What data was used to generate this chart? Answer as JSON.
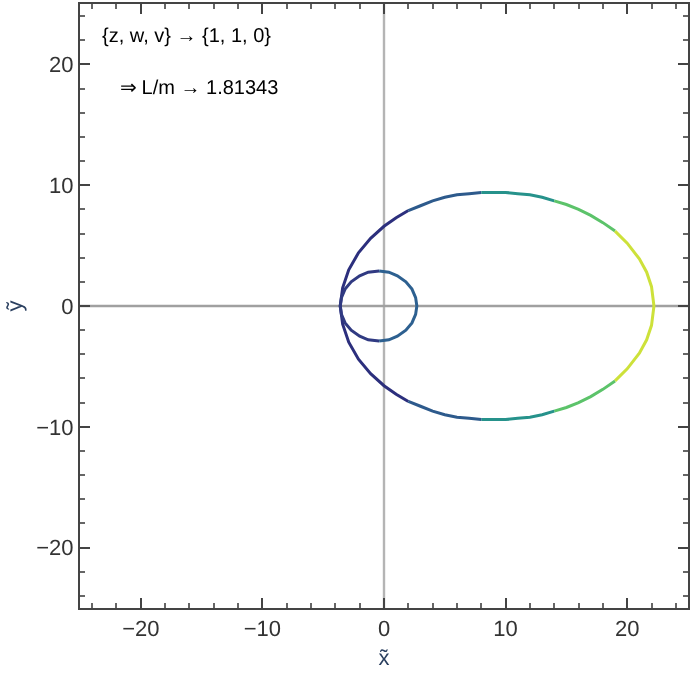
{
  "chart_data": {
    "type": "line",
    "xlabel": "x̃",
    "ylabel": "ỹ",
    "annotations": [
      "{z, w, v} → {1, 1, 0}",
      "⇒ L/m → 1.81343"
    ],
    "xlim": [
      -25,
      25
    ],
    "ylim": [
      -25,
      25
    ],
    "xticks": [
      {
        "value": -20,
        "label": "−20"
      },
      {
        "value": -10,
        "label": "−10"
      },
      0,
      10,
      20
    ],
    "yticks": [
      {
        "value": -20,
        "label": "−20"
      },
      {
        "value": -10,
        "label": "−10"
      },
      0,
      10,
      20
    ],
    "grid": false,
    "marker": "none",
    "line_style": "solid",
    "ref_lines": [
      {
        "axis": "x",
        "value": 0,
        "color": "#b4b4b4"
      },
      {
        "axis": "y",
        "value": 0,
        "color": "#a0a0a0"
      }
    ],
    "series": [
      {
        "color": "#2c2f7d",
        "x": [
          2,
          1,
          0,
          -1.1,
          -2.1,
          -2.9,
          -3.4,
          -3.6,
          -3.4,
          -2.9,
          -2.1,
          -1.1,
          0,
          1,
          2
        ],
        "values": [
          -7.9,
          -7.3,
          -6.6,
          -5.6,
          -4.4,
          -3,
          -1.5,
          0,
          1.5,
          3,
          4.4,
          5.6,
          6.6,
          7.3,
          7.9
        ]
      },
      {
        "color": "#2d5a8c",
        "x": [
          2,
          3,
          4,
          5,
          6,
          7,
          8
        ],
        "values": [
          7.9,
          8.3,
          8.7,
          9,
          9.2,
          9.3,
          9.4
        ]
      },
      {
        "color": "#26928b",
        "x": [
          8,
          9,
          10,
          11,
          12,
          13,
          14
        ],
        "values": [
          9.4,
          9.4,
          9.4,
          9.3,
          9.2,
          9,
          8.7
        ]
      },
      {
        "color": "#5cc36a",
        "x": [
          14,
          15,
          16,
          17,
          18,
          19
        ],
        "values": [
          8.7,
          8.4,
          8,
          7.5,
          6.9,
          6.2
        ]
      },
      {
        "color": "#cde13a",
        "x": [
          19,
          20,
          21,
          21.6,
          22,
          22.2,
          22,
          21.6,
          21,
          20,
          19
        ],
        "values": [
          6.2,
          5.2,
          3.9,
          2.8,
          1.6,
          0,
          -1.6,
          -2.8,
          -3.9,
          -5.2,
          -6.2
        ]
      },
      {
        "color": "#5cc36a",
        "x": [
          19,
          18,
          17,
          16,
          15,
          14
        ],
        "values": [
          -6.2,
          -6.9,
          -7.5,
          -8,
          -8.4,
          -8.7
        ]
      },
      {
        "color": "#26928b",
        "x": [
          14,
          13,
          12,
          11,
          10,
          9,
          8
        ],
        "values": [
          -8.7,
          -9,
          -9.2,
          -9.3,
          -9.4,
          -9.4,
          -9.4
        ]
      },
      {
        "color": "#2d5a8c",
        "x": [
          8,
          7,
          6,
          5,
          4,
          3,
          2
        ],
        "values": [
          -9.4,
          -9.3,
          -9.2,
          -9,
          -8.7,
          -8.3,
          -7.9
        ]
      },
      {
        "color": "#303a82",
        "x": [
          -0.4,
          -1.3,
          -2,
          -2.7,
          -3.2,
          -3.5,
          -3.6,
          -3.5,
          -3.2,
          -2.7,
          -2,
          -1.3,
          -0.4
        ],
        "values": [
          2.9,
          2.8,
          2.5,
          2,
          1.4,
          0.7,
          0,
          -0.7,
          -1.4,
          -2,
          -2.5,
          -2.8,
          -2.9
        ]
      },
      {
        "color": "#2d6090",
        "x": [
          -0.4,
          0.4,
          1.1,
          1.8,
          2.3,
          2.6,
          2.7,
          2.6,
          2.3,
          1.8,
          1.1,
          0.4,
          -0.4
        ],
        "values": [
          -2.9,
          -2.8,
          -2.5,
          -2,
          -1.4,
          -0.7,
          0,
          0.7,
          1.4,
          2,
          2.5,
          2.8,
          2.9
        ]
      }
    ]
  }
}
